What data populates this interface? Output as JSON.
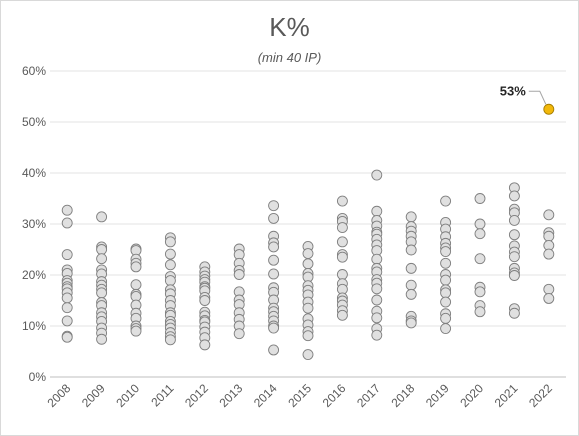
{
  "chart_data": {
    "type": "scatter",
    "title": "K%",
    "subtitle": "(min 40 IP)",
    "xlabel": "",
    "ylabel": "",
    "ylim": [
      0,
      60
    ],
    "yticks": [
      "0%",
      "10%",
      "20%",
      "30%",
      "40%",
      "50%",
      "60%"
    ],
    "categories": [
      "2008",
      "2009",
      "2010",
      "2011",
      "2012",
      "2013",
      "2014",
      "2015",
      "2016",
      "2017",
      "2018",
      "2019",
      "2020",
      "2021",
      "2022"
    ],
    "grid": true,
    "point_color": "#e0e0e0",
    "highlight_color": "#f2b80a",
    "series": [
      {
        "values": [
          [
            32.7,
            30.2,
            24.0,
            21.0,
            20.3,
            18.9,
            18.4,
            17.7,
            17.3,
            16.5,
            15.5,
            13.6,
            11.0,
            8.0,
            7.8
          ],
          [
            31.4,
            25.5,
            25.0,
            23.2,
            21.0,
            20.2,
            18.7,
            18.0,
            17.2,
            16.5,
            14.6,
            14.0,
            12.6,
            11.8,
            10.9,
            9.6,
            8.6,
            7.4
          ],
          [
            25.1,
            24.8,
            23.1,
            22.3,
            21.6,
            18.1,
            16.2,
            15.8,
            14.1,
            12.5,
            11.5,
            10.0,
            9.5,
            9.0
          ],
          [
            27.3,
            26.5,
            24.1,
            22.0,
            19.7,
            18.9,
            17.1,
            16.3,
            15.0,
            14.0,
            12.6,
            12.1,
            10.9,
            10.3,
            9.6,
            8.7,
            7.9,
            7.3
          ],
          [
            21.6,
            20.6,
            19.8,
            19.1,
            18.6,
            17.7,
            17.4,
            16.9,
            15.6,
            15.0,
            12.7,
            12.0,
            11.1,
            10.8,
            9.8,
            8.8,
            7.7,
            6.3
          ],
          [
            25.1,
            24.0,
            22.3,
            20.9,
            20.1,
            16.7,
            15.1,
            14.2,
            12.6,
            11.3,
            10.0,
            8.5
          ],
          [
            33.6,
            31.1,
            27.6,
            26.3,
            25.5,
            22.9,
            20.2,
            17.5,
            16.6,
            15.1,
            13.5,
            12.8,
            11.9,
            11.0,
            10.0,
            9.6,
            5.3
          ],
          [
            25.6,
            24.2,
            22.2,
            20.3,
            19.6,
            17.9,
            17.0,
            16.1,
            14.7,
            13.5,
            11.4,
            10.2,
            8.9,
            8.1,
            4.4
          ],
          [
            34.5,
            31.1,
            30.5,
            29.3,
            26.5,
            24.0,
            23.5,
            20.1,
            18.3,
            17.2,
            15.5,
            14.9,
            14.1,
            13.0,
            12.1
          ],
          [
            39.6,
            32.5,
            30.7,
            29.6,
            28.4,
            28.0,
            27.0,
            25.9,
            24.8,
            23.1,
            21.3,
            20.6,
            19.1,
            18.4,
            17.3,
            15.1,
            12.9,
            11.6,
            9.5,
            8.2
          ],
          [
            31.4,
            29.5,
            28.6,
            27.6,
            26.5,
            24.9,
            21.3,
            18.0,
            16.2,
            11.9,
            11.0,
            10.6
          ],
          [
            34.5,
            30.3,
            29.0,
            27.5,
            26.2,
            25.3,
            24.6,
            22.3,
            20.1,
            19.0,
            17.1,
            16.5,
            14.7,
            12.4,
            11.5,
            9.5
          ],
          [
            35.0,
            30.0,
            28.1,
            23.2,
            17.6,
            16.7,
            14.0,
            12.8
          ],
          [
            37.1,
            35.5,
            32.9,
            32.2,
            30.7,
            27.9,
            25.7,
            24.5,
            23.6,
            21.3,
            20.4,
            19.9,
            13.4,
            12.5
          ],
          [
            31.8,
            28.3,
            27.6,
            25.8,
            24.1,
            17.2,
            15.4
          ]
        ]
      }
    ],
    "highlight": {
      "category": "2022",
      "value": 52.5,
      "label": "53%"
    }
  }
}
